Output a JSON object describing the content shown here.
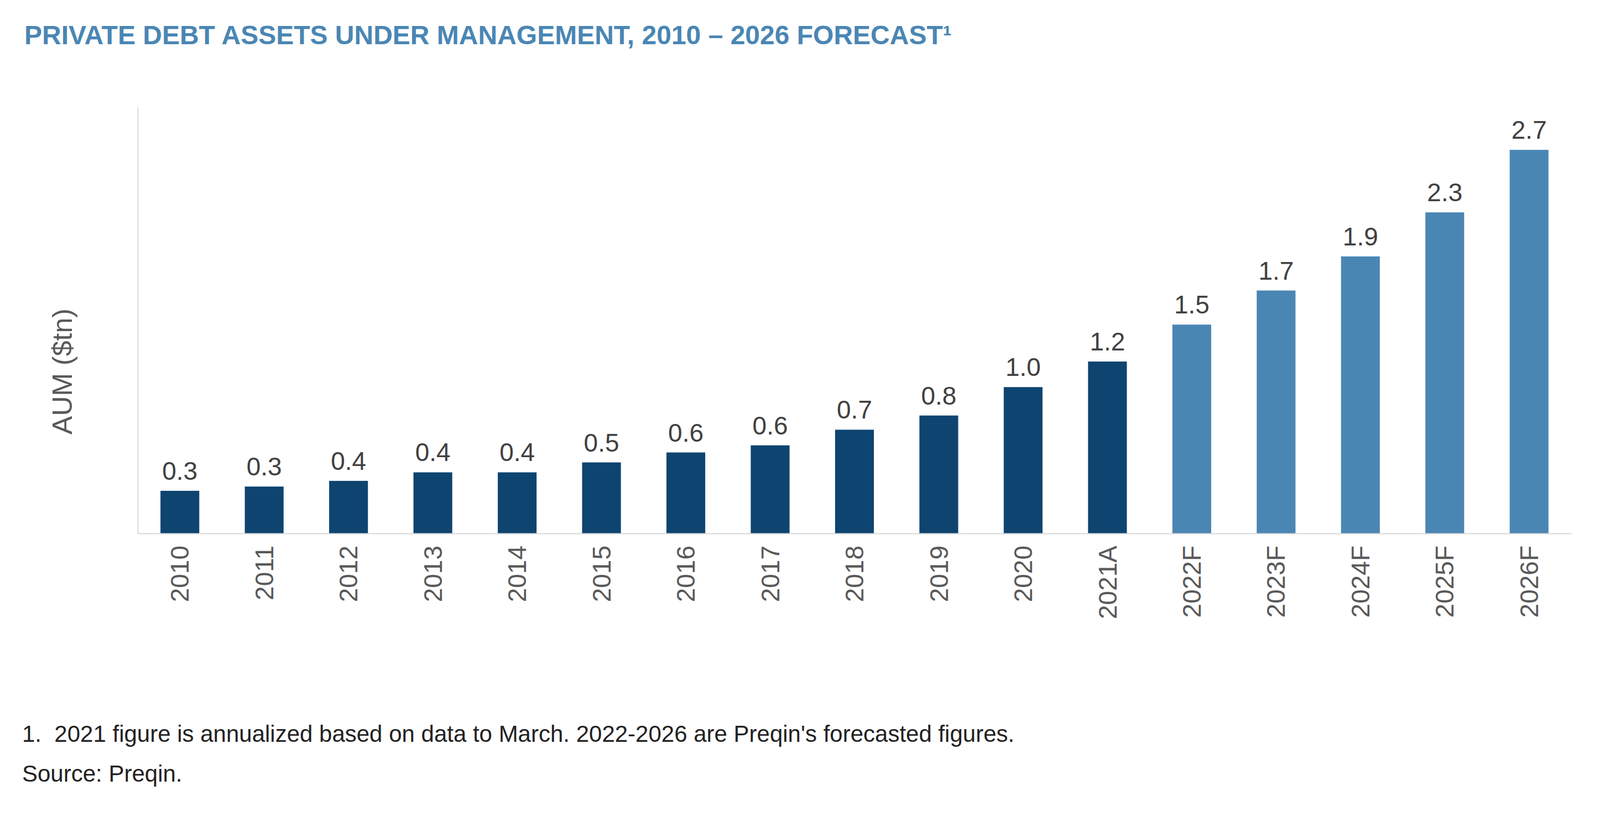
{
  "chart_data": {
    "type": "bar",
    "title": "PRIVATE DEBT ASSETS UNDER MANAGEMENT, 2010 – 2026 FORECAST¹",
    "y_label": "AUM ($tn)",
    "categories": [
      "2010",
      "2011",
      "2012",
      "2013",
      "2014",
      "2015",
      "2016",
      "2017",
      "2018",
      "2019",
      "2020",
      "2021A",
      "2022F",
      "2023F",
      "2024F",
      "2025F",
      "2026F"
    ],
    "values": [
      0.3,
      0.33,
      0.37,
      0.43,
      0.43,
      0.5,
      0.57,
      0.62,
      0.73,
      0.83,
      1.03,
      1.21,
      1.47,
      1.71,
      1.95,
      2.26,
      2.7
    ],
    "value_labels": [
      "0.3",
      "0.3",
      "0.4",
      "0.4",
      "0.4",
      "0.5",
      "0.6",
      "0.6",
      "0.7",
      "0.8",
      "1.0",
      "1.2",
      "1.5",
      "1.7",
      "1.9",
      "2.3",
      "2.7"
    ],
    "colors": [
      "#0e4470",
      "#0e4470",
      "#0e4470",
      "#0e4470",
      "#0e4470",
      "#0e4470",
      "#0e4470",
      "#0e4470",
      "#0e4470",
      "#0e4470",
      "#0e4470",
      "#0e4470",
      "#4a86b4",
      "#4a86b4",
      "#4a86b4",
      "#4a86b4",
      "#4a86b4"
    ],
    "ylim": [
      0,
      3.0
    ],
    "data_labels": true,
    "tick_labels": "x",
    "grid": false,
    "footnotes": [
      "1.  2021 figure is annualized based on data to March. 2022-2026 are Preqin's forecasted figures.",
      "Source: Preqin."
    ]
  }
}
